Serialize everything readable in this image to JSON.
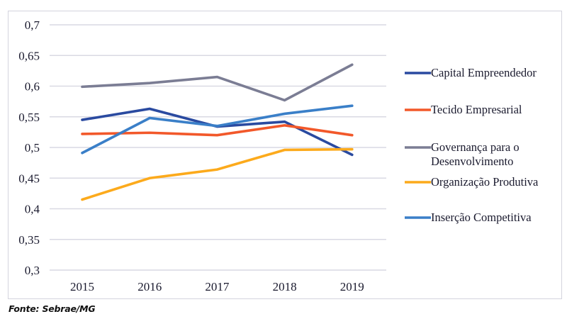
{
  "source": "Fonte: Sebrae/MG",
  "chart_data": {
    "type": "line",
    "title": "",
    "xlabel": "",
    "ylabel": "",
    "x": [
      "2015",
      "2016",
      "2017",
      "2018",
      "2019"
    ],
    "ylim": [
      0.3,
      0.7
    ],
    "yticks": [
      0.3,
      0.35,
      0.4,
      0.45,
      0.5,
      0.55,
      0.6,
      0.65,
      0.7
    ],
    "ytick_labels": [
      "0,3",
      "0,35",
      "0,4",
      "0,45",
      "0,5",
      "0,55",
      "0,6",
      "0,65",
      "0,7"
    ],
    "grid": true,
    "legend_position": "right",
    "series": [
      {
        "name": "Capital Empreendedor",
        "color": "#2a4aa0",
        "values": [
          0.545,
          0.563,
          0.534,
          0.542,
          0.488
        ]
      },
      {
        "name": "Tecido Empresarial",
        "color": "#f2582a",
        "values": [
          0.522,
          0.524,
          0.52,
          0.536,
          0.52
        ]
      },
      {
        "name": "Governança para o Desenvolvimento",
        "legend_lines": [
          "Governança para o",
          "Desenvolvimento"
        ],
        "color": "#7b7d94",
        "values": [
          0.599,
          0.605,
          0.615,
          0.577,
          0.635
        ]
      },
      {
        "name": "Organização Produtiva",
        "color": "#fcaa1c",
        "values": [
          0.415,
          0.45,
          0.464,
          0.496,
          0.497
        ]
      },
      {
        "name": "Inserção Competitiva",
        "color": "#3a7fc8",
        "values": [
          0.491,
          0.548,
          0.535,
          0.555,
          0.568
        ]
      }
    ]
  }
}
